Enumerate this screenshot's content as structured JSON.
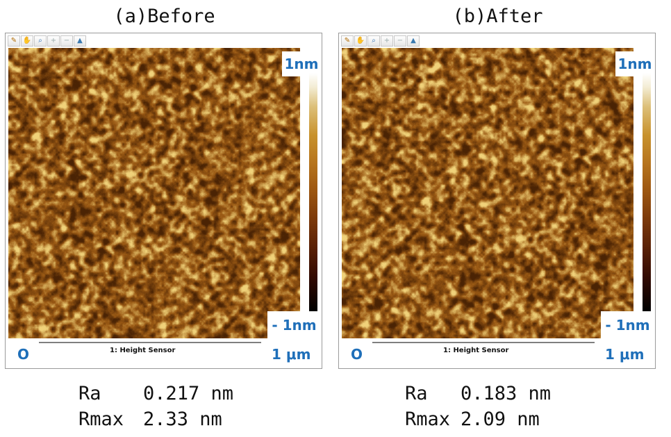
{
  "panels": [
    {
      "title": "(a)Before",
      "scale_max": "1nm",
      "scale_min": "- 1nm",
      "axis_start": "O",
      "axis_end": "1 μm",
      "channel": "1: Height Sensor",
      "ra_label": "Ra",
      "ra_value": "0.217 nm",
      "rmax_label": "Rmax",
      "rmax_value": "2.33 nm"
    },
    {
      "title": "(b)After",
      "scale_max": "1nm",
      "scale_min": "- 1nm",
      "axis_start": "O",
      "axis_end": "1 μm",
      "channel": "1: Height Sensor",
      "ra_label": "Ra",
      "ra_value": "0.183 nm",
      "rmax_label": "Rmax",
      "rmax_value": "2.09 nm"
    }
  ],
  "toolbar_icons": [
    "pencil-icon",
    "hand-icon",
    "zoom-icon",
    "zoom-in-icon",
    "zoom-out-icon",
    "3d-view-icon"
  ],
  "colors": {
    "accent": "#1f6fb9",
    "surface_dark": "#4a2304",
    "surface_mid": "#9b5a14",
    "surface_light": "#f0d27a"
  }
}
